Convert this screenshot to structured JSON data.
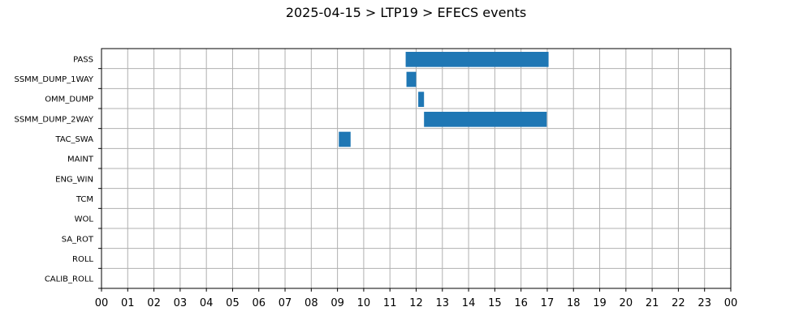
{
  "title": "2025-04-15 > LTP19 > EFECS events",
  "chart_data": {
    "type": "bar",
    "orientation": "horizontal",
    "title": "2025-04-15 > LTP19 > EFECS events",
    "xlabel": "",
    "ylabel": "",
    "x_unit": "hour",
    "xlim": [
      0,
      24
    ],
    "x_tick_labels": [
      "00",
      "01",
      "02",
      "03",
      "04",
      "05",
      "06",
      "07",
      "08",
      "09",
      "10",
      "11",
      "12",
      "13",
      "14",
      "15",
      "16",
      "17",
      "18",
      "19",
      "20",
      "21",
      "22",
      "23",
      "00"
    ],
    "categories": [
      "PASS",
      "SSMM_DUMP_1WAY",
      "OMM_DUMP",
      "SSMM_DUMP_2WAY",
      "TAC_SWA",
      "MAINT",
      "ENG_WIN",
      "TCM",
      "WOL",
      "SA_ROT",
      "ROLL",
      "CALIB_ROLL"
    ],
    "events": [
      {
        "category": "PASS",
        "start": 11.6,
        "end": 17.05
      },
      {
        "category": "SSMM_DUMP_1WAY",
        "start": 11.63,
        "end": 12.0
      },
      {
        "category": "OMM_DUMP",
        "start": 12.08,
        "end": 12.3
      },
      {
        "category": "SSMM_DUMP_2WAY",
        "start": 12.3,
        "end": 16.98
      },
      {
        "category": "TAC_SWA",
        "start": 9.05,
        "end": 9.5
      }
    ],
    "bar_color": "#1f77b4",
    "grid": true
  }
}
